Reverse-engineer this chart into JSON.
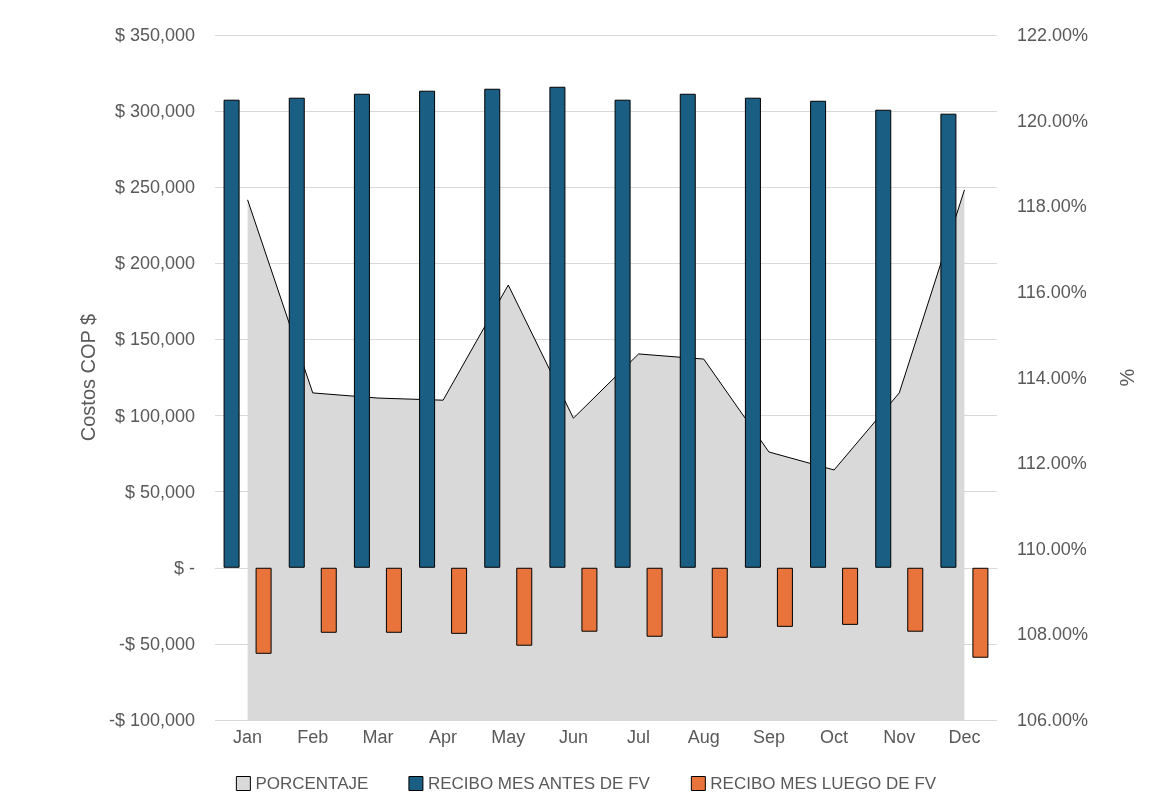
{
  "chart_data": {
    "type": "bar",
    "ylabel": "Costos COP $",
    "y2label": "%",
    "categories": [
      "Jan",
      "Feb",
      "Mar",
      "Apr",
      "May",
      "Jun",
      "Jul",
      "Aug",
      "Sep",
      "Oct",
      "Nov",
      "Dec"
    ],
    "series": [
      {
        "name": "PORCENTAJE",
        "type": "area",
        "axis": "y2",
        "color": "#d9d9d9",
        "values": [
          118.15,
          113.64,
          113.52,
          113.47,
          116.16,
          113.05,
          114.55,
          114.43,
          112.26,
          111.84,
          113.64,
          118.38
        ]
      },
      {
        "name": "RECIBO MES ANTES DE FV",
        "color": "#1b5e84",
        "values": [
          307500,
          308800,
          311400,
          313400,
          314700,
          316000,
          307500,
          311400,
          308800,
          306800,
          300900,
          298300
        ]
      },
      {
        "name": "RECIBO MES LUEGO DE FV",
        "color": "#e8743b",
        "values": [
          -56500,
          -42700,
          -42700,
          -43400,
          -51200,
          -42000,
          -45300,
          -46000,
          -38800,
          -37500,
          -42000,
          -59100
        ]
      }
    ],
    "ylim": [
      -100000,
      350000
    ],
    "yticks": [
      {
        "value": -100000,
        "label": "-$ 100,000"
      },
      {
        "value": -50000,
        "label": "-$ 50,000"
      },
      {
        "value": 0,
        "label": "$ -"
      },
      {
        "value": 50000,
        "label": "$ 50,000"
      },
      {
        "value": 100000,
        "label": "$ 100,000"
      },
      {
        "value": 150000,
        "label": "$ 150,000"
      },
      {
        "value": 200000,
        "label": "$ 200,000"
      },
      {
        "value": 250000,
        "label": "$ 250,000"
      },
      {
        "value": 300000,
        "label": "$ 300,000"
      },
      {
        "value": 350000,
        "label": "$ 350,000"
      }
    ],
    "y2lim": [
      106,
      122
    ],
    "y2ticks": [
      {
        "value": 106,
        "label": "106.00%"
      },
      {
        "value": 108,
        "label": "108.00%"
      },
      {
        "value": 110,
        "label": "110.00%"
      },
      {
        "value": 112,
        "label": "112.00%"
      },
      {
        "value": 114,
        "label": "114.00%"
      },
      {
        "value": 116,
        "label": "116.00%"
      },
      {
        "value": 118,
        "label": "118.00%"
      },
      {
        "value": 120,
        "label": "120.00%"
      },
      {
        "value": 122,
        "label": "122.00%"
      }
    ],
    "grid": "y",
    "legend": "bottom"
  }
}
